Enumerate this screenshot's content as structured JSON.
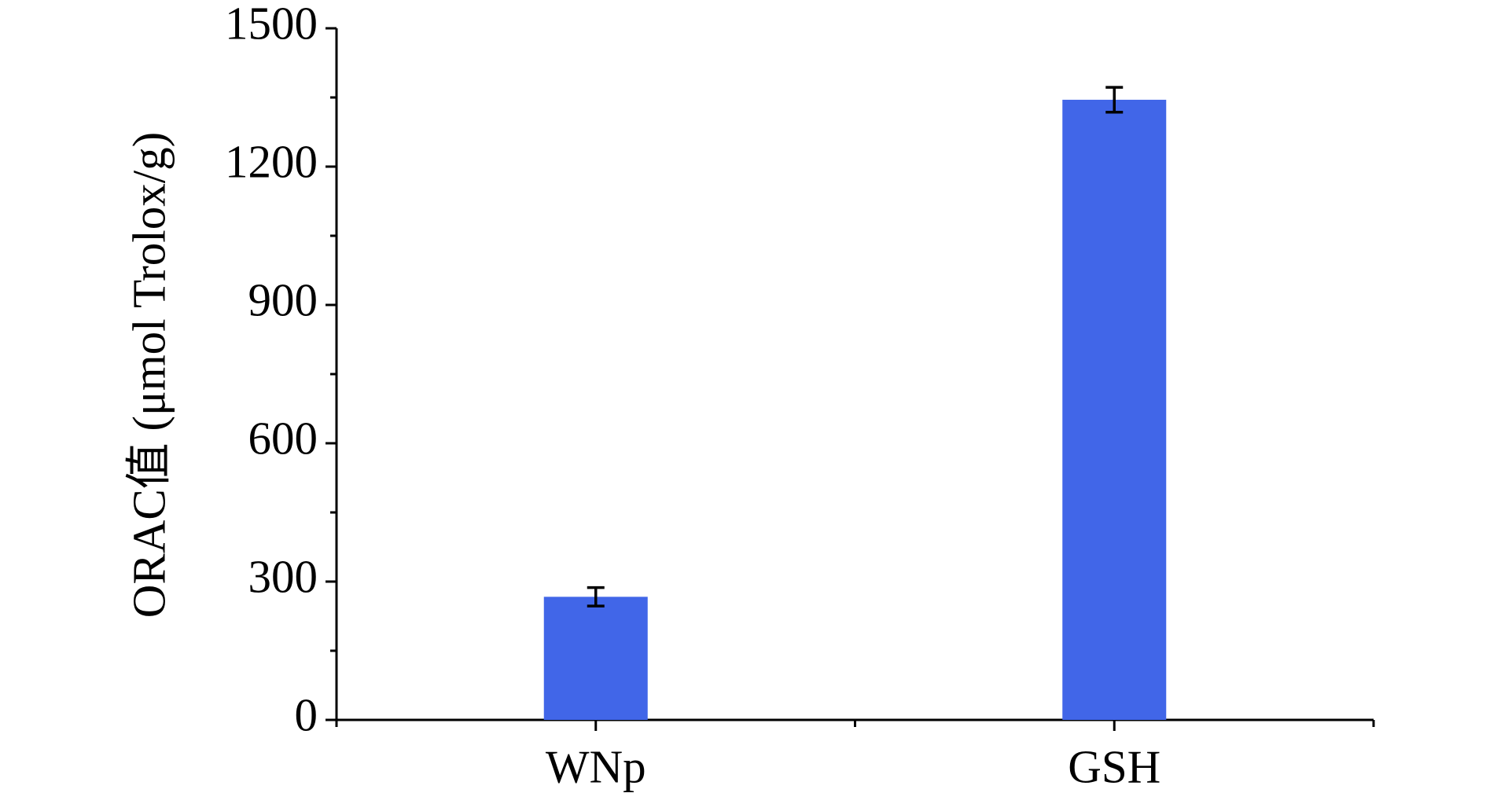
{
  "chart_data": {
    "type": "bar",
    "ylabel": "ORAC值 (μmol Trolox/g)",
    "categories": [
      "WNp",
      "GSH"
    ],
    "values": [
      267,
      1345
    ],
    "errors": [
      20,
      27
    ],
    "color": "#4166e8",
    "ylim": [
      0,
      1500
    ],
    "yticks": [
      0,
      300,
      600,
      900,
      1200,
      1500
    ]
  }
}
